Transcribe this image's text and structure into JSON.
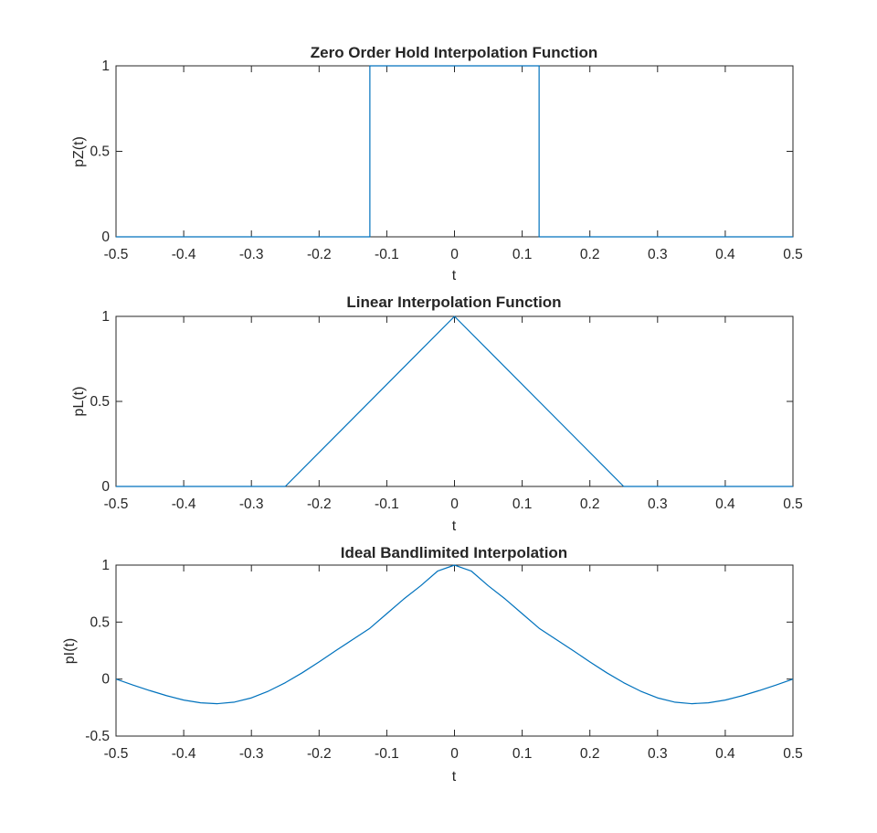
{
  "chart_data": [
    {
      "type": "line",
      "title": "Zero Order Hold Interpolation Function",
      "xlabel": "t",
      "ylabel": "pZ(t)",
      "xlim": [
        -0.5,
        0.5
      ],
      "ylim": [
        0,
        1
      ],
      "xticks": [
        -0.5,
        -0.4,
        -0.3,
        -0.2,
        -0.1,
        0,
        0.1,
        0.2,
        0.3,
        0.4,
        0.5
      ],
      "xtick_labels": [
        "-0.5",
        "-0.4",
        "-0.3",
        "-0.2",
        "-0.1",
        "0",
        "0.1",
        "0.2",
        "0.3",
        "0.4",
        "0.5"
      ],
      "yticks": [
        0,
        0.5,
        1
      ],
      "ytick_labels": [
        "0",
        "0.5",
        "1"
      ],
      "grid": false,
      "color": "#0072bd",
      "x": [
        -0.5,
        -0.125,
        -0.125,
        0.125,
        0.125,
        0.5
      ],
      "y": [
        0,
        0,
        1,
        1,
        0,
        0
      ]
    },
    {
      "type": "line",
      "title": "Linear Interpolation Function",
      "xlabel": "t",
      "ylabel": "pL(t)",
      "xlim": [
        -0.5,
        0.5
      ],
      "ylim": [
        0,
        1
      ],
      "xticks": [
        -0.5,
        -0.4,
        -0.3,
        -0.2,
        -0.1,
        0,
        0.1,
        0.2,
        0.3,
        0.4,
        0.5
      ],
      "xtick_labels": [
        "-0.5",
        "-0.4",
        "-0.3",
        "-0.2",
        "-0.1",
        "0",
        "0.1",
        "0.2",
        "0.3",
        "0.4",
        "0.5"
      ],
      "yticks": [
        0,
        0.5,
        1
      ],
      "ytick_labels": [
        "0",
        "0.5",
        "1"
      ],
      "grid": false,
      "color": "#0072bd",
      "x": [
        -0.5,
        -0.25,
        0,
        0.25,
        0.5
      ],
      "y": [
        0,
        0,
        1,
        0,
        0
      ]
    },
    {
      "type": "line",
      "title": "Ideal Bandlimited Interpolation",
      "xlabel": "t",
      "ylabel": "pI(t)",
      "xlim": [
        -0.5,
        0.5
      ],
      "ylim": [
        -0.5,
        1
      ],
      "xticks": [
        -0.5,
        -0.4,
        -0.3,
        -0.2,
        -0.1,
        0,
        0.1,
        0.2,
        0.3,
        0.4,
        0.5
      ],
      "xtick_labels": [
        "-0.5",
        "-0.4",
        "-0.3",
        "-0.2",
        "-0.1",
        "0",
        "0.1",
        "0.2",
        "0.3",
        "0.4",
        "0.5"
      ],
      "yticks": [
        -0.5,
        0,
        0.5,
        1
      ],
      "ytick_labels": [
        "-0.5",
        "0",
        "0.5",
        "1"
      ],
      "grid": false,
      "color": "#0072bd",
      "x": [
        -0.5,
        -0.475,
        -0.45,
        -0.425,
        -0.4,
        -0.375,
        -0.35,
        -0.325,
        -0.3,
        -0.275,
        -0.25,
        -0.225,
        -0.2,
        -0.175,
        -0.15,
        -0.125,
        -0.1,
        -0.075,
        -0.05,
        -0.025,
        0,
        0.025,
        0.05,
        0.075,
        0.1,
        0.125,
        0.15,
        0.175,
        0.2,
        0.225,
        0.25,
        0.275,
        0.3,
        0.325,
        0.35,
        0.375,
        0.4,
        0.425,
        0.45,
        0.475,
        0.5
      ],
      "y": [
        0,
        -0.052,
        -0.101,
        -0.146,
        -0.184,
        -0.208,
        -0.216,
        -0.202,
        -0.165,
        -0.106,
        -0.032,
        0.055,
        0.151,
        0.251,
        0.348,
        0.446,
        0.574,
        0.702,
        0.818,
        0.947,
        1,
        0.947,
        0.818,
        0.702,
        0.574,
        0.446,
        0.348,
        0.251,
        0.151,
        0.055,
        -0.032,
        -0.106,
        -0.165,
        -0.202,
        -0.216,
        -0.208,
        -0.184,
        -0.146,
        -0.101,
        -0.052,
        0
      ]
    }
  ]
}
